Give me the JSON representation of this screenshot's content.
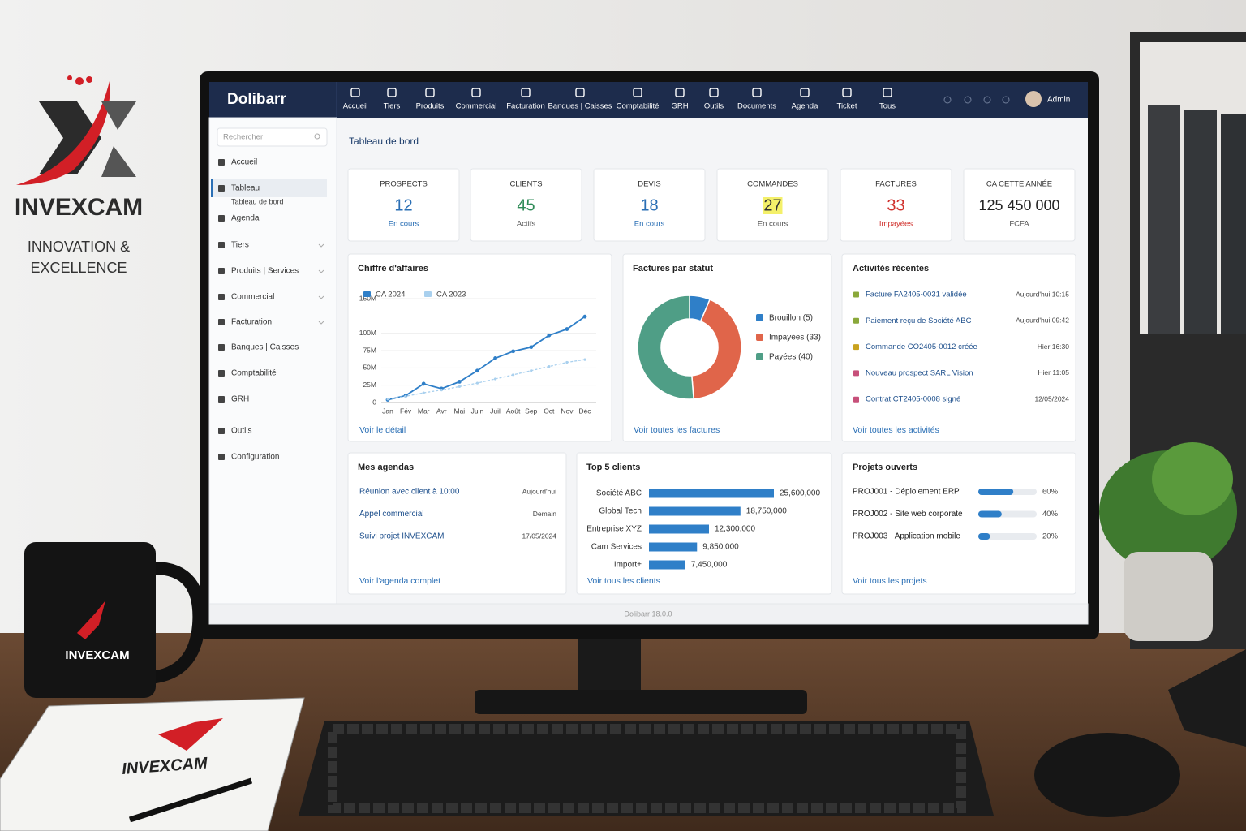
{
  "brand": {
    "name": "INVEXCAM",
    "tagline": [
      "INNOVATION &",
      "EXCELLENCE"
    ],
    "mug_text": "INVEXCAM",
    "notebook_text": "INVEXCAM"
  },
  "app": {
    "logo": "Dolibarr",
    "menu": [
      "Accueil",
      "Tiers",
      "Produits",
      "Commercial",
      "Facturation",
      "Banques | Caisses",
      "Comptabilité",
      "GRH",
      "Outils",
      "Documents",
      "Agenda",
      "Ticket",
      "Tous"
    ],
    "user": "Admin",
    "footer": "Dolibarr 18.0.0"
  },
  "sidebar": {
    "search": "Rechercher",
    "items": [
      {
        "label": "Accueil"
      },
      {
        "label": "Tableau",
        "sub": "Tableau de bord"
      },
      {
        "label": "Agenda"
      },
      {
        "label": "Tiers",
        "expandable": true
      },
      {
        "label": "Produits | Services",
        "expandable": true
      },
      {
        "label": "Commercial",
        "expandable": true
      },
      {
        "label": "Facturation",
        "expandable": true
      },
      {
        "label": "Banques | Caisses"
      },
      {
        "label": "Comptabilité"
      },
      {
        "label": "GRH"
      },
      {
        "label": "Outils"
      },
      {
        "label": "Configuration"
      }
    ]
  },
  "page_title": "Tableau de bord",
  "kpis": [
    {
      "label": "PROSPECTS",
      "value": 12,
      "note": "En cours"
    },
    {
      "label": "CLIENTS",
      "value": 45,
      "note": "Actifs"
    },
    {
      "label": "DEVIS",
      "value": 18,
      "note": "En cours"
    },
    {
      "label": "COMMANDES",
      "value": 27,
      "note": "En cours"
    },
    {
      "label": "FACTURES",
      "value": 33,
      "note": "Impayées"
    },
    {
      "label": "CA CETTE ANNÉE",
      "value": "125 450 000",
      "note": "FCFA"
    }
  ],
  "chart_data": [
    {
      "type": "line",
      "title": "Chiffre d'affaires",
      "categories": [
        "Jan",
        "Fév",
        "Mar",
        "Avr",
        "Mai",
        "Juin",
        "Juil",
        "Août",
        "Sep",
        "Oct",
        "Nov",
        "Déc"
      ],
      "series": [
        {
          "name": "CA 2024",
          "color": "#2f7fc8",
          "values": [
            4,
            10,
            27,
            20,
            30,
            46,
            64,
            74,
            80,
            97,
            106,
            124
          ]
        },
        {
          "name": "CA 2023",
          "color": "#a9d0ee",
          "values": [
            5,
            9,
            14,
            18,
            23,
            28,
            34,
            40,
            46,
            52,
            58,
            62
          ]
        }
      ],
      "ylim": [
        0,
        150
      ],
      "yticks": [
        {
          "value": 0,
          "label": "0"
        },
        {
          "value": 25,
          "label": "25M"
        },
        {
          "value": 50,
          "label": "50M"
        },
        {
          "value": 75,
          "label": "75M"
        },
        {
          "value": 100,
          "label": "100M"
        },
        {
          "value": 150,
          "label": "150M"
        }
      ],
      "grid": true,
      "link": "Voir le détail"
    },
    {
      "type": "pie",
      "title": "Factures par statut",
      "categories": [
        "Brouillon (5)",
        "Impayées (33)",
        "Payées (40)"
      ],
      "values": [
        5,
        33,
        40
      ],
      "colors": [
        "#2f7fc8",
        "#e0654a",
        "#4f9e86"
      ],
      "link": "Voir toutes les factures"
    },
    {
      "type": "hbar",
      "title": "Top 5 clients",
      "categories": [
        "Société ABC",
        "Global Tech",
        "Entreprise XYZ",
        "Cam Services",
        "Import+"
      ],
      "values": [
        25600000,
        18750000,
        12300000,
        9850000,
        7450000
      ],
      "value_labels": [
        "25,600,000",
        "18,750,000",
        "12,300,000",
        "9,850,000",
        "7,450,000"
      ],
      "color": "#2f7fc8",
      "link": "Voir tous les clients"
    },
    {
      "type": "progress",
      "title": "Projets ouverts",
      "categories": [
        "PROJ001 - Déploiement ERP",
        "PROJ002 - Site web corporate",
        "PROJ003 - Application mobile"
      ],
      "values": [
        60,
        40,
        20
      ],
      "value_labels": [
        "60%",
        "40%",
        "20%"
      ],
      "xlim": [
        0,
        100
      ],
      "color": "#2f7fc8",
      "link": "Voir tous les projets"
    }
  ],
  "activities": {
    "title": "Activités récentes",
    "items": [
      {
        "text": "Facture FA2405-0031 validée",
        "time": "Aujourd'hui 10:15"
      },
      {
        "text": "Paiement reçu de Société ABC",
        "time": "Aujourd'hui 09:42"
      },
      {
        "text": "Commande CO2405-0012 créée",
        "time": "Hier 16:30"
      },
      {
        "text": "Nouveau prospect SARL Vision",
        "time": "Hier 11:05"
      },
      {
        "text": "Contrat CT2405-0008 signé",
        "time": "12/05/2024"
      }
    ],
    "link": "Voir toutes les activités"
  },
  "agenda": {
    "title": "Mes agendas",
    "items": [
      {
        "text": "Réunion avec client à 10:00",
        "date": "Aujourd'hui"
      },
      {
        "text": "Appel commercial",
        "date": "Demain"
      },
      {
        "text": "Suivi projet INVEXCAM",
        "date": "17/05/2024"
      }
    ],
    "link": "Voir l'agenda complet"
  }
}
